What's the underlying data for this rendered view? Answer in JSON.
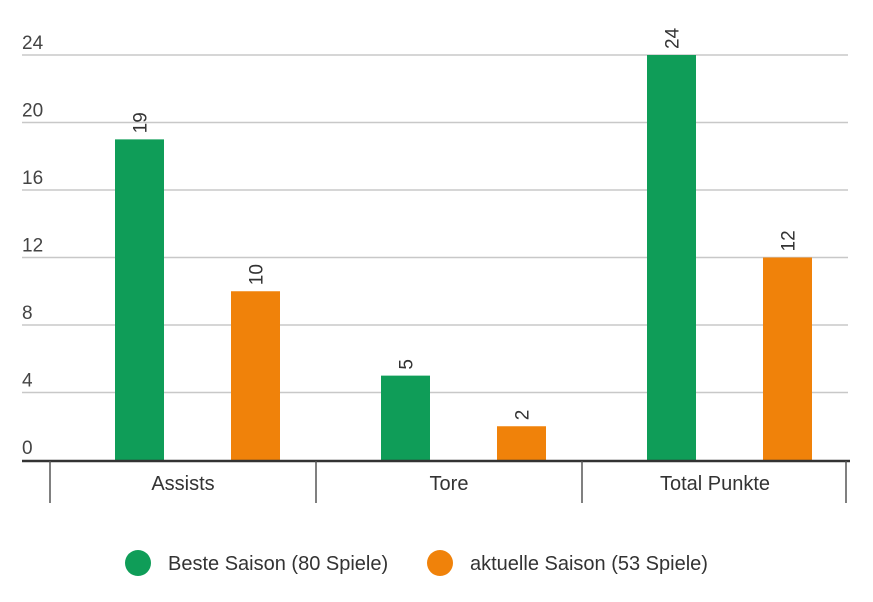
{
  "chart_data": {
    "type": "bar",
    "categories": [
      "Assists",
      "Tore",
      "Total Punkte"
    ],
    "series": [
      {
        "name": "Beste Saison (80 Spiele)",
        "values": [
          19,
          5,
          24
        ],
        "color": "#0f9d58"
      },
      {
        "name": "aktuelle Saison (53 Spiele)",
        "values": [
          10,
          2,
          12
        ],
        "color": "#f0820a"
      }
    ],
    "yticks": [
      0,
      4,
      8,
      12,
      16,
      20,
      24
    ],
    "ylim": [
      0,
      24
    ],
    "grid": true,
    "legend_position": "bottom",
    "data_labels": true
  }
}
